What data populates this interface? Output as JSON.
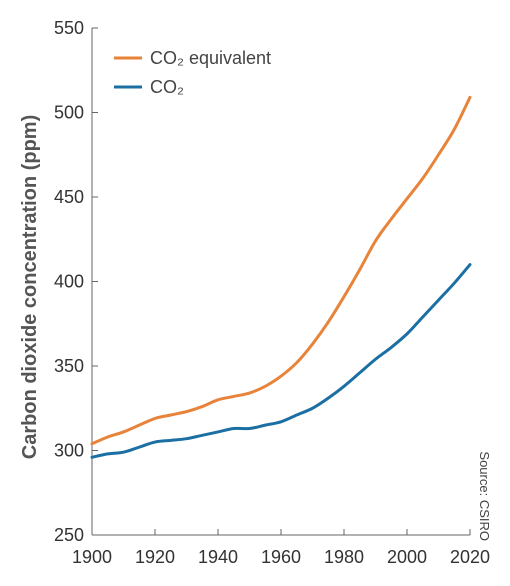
{
  "chart_data": {
    "type": "line",
    "title": "",
    "xlabel": "",
    "ylabel": "Carbon dioxide concentration (ppm)",
    "xlim": [
      1900,
      2020
    ],
    "ylim": [
      250,
      550
    ],
    "xticks": [
      1900,
      1920,
      1940,
      1960,
      1980,
      2000,
      2020
    ],
    "yticks": [
      250,
      300,
      350,
      400,
      450,
      500,
      550
    ],
    "grid": false,
    "legend": "top-left",
    "source": "Source: CSIRO",
    "series": [
      {
        "name": "CO₂ equivalent",
        "color": "#E8833A",
        "x": [
          1900,
          1905,
          1910,
          1915,
          1920,
          1925,
          1930,
          1935,
          1940,
          1945,
          1950,
          1955,
          1960,
          1965,
          1970,
          1975,
          1980,
          1985,
          1990,
          1995,
          2000,
          2005,
          2010,
          2015,
          2020
        ],
        "values": [
          304,
          308,
          311,
          315,
          319,
          321,
          323,
          326,
          330,
          332,
          334,
          338,
          344,
          352,
          363,
          376,
          391,
          407,
          424,
          437,
          449,
          461,
          475,
          490,
          509
        ]
      },
      {
        "name": "CO₂",
        "color": "#1B6FA3",
        "x": [
          1900,
          1905,
          1910,
          1915,
          1920,
          1925,
          1930,
          1935,
          1940,
          1945,
          1950,
          1955,
          1960,
          1965,
          1970,
          1975,
          1980,
          1985,
          1990,
          1995,
          2000,
          2005,
          2010,
          2015,
          2020
        ],
        "values": [
          296,
          298,
          299,
          302,
          305,
          306,
          307,
          309,
          311,
          313,
          313,
          315,
          317,
          321,
          325,
          331,
          338,
          346,
          354,
          361,
          369,
          379,
          389,
          399,
          410
        ]
      }
    ]
  }
}
